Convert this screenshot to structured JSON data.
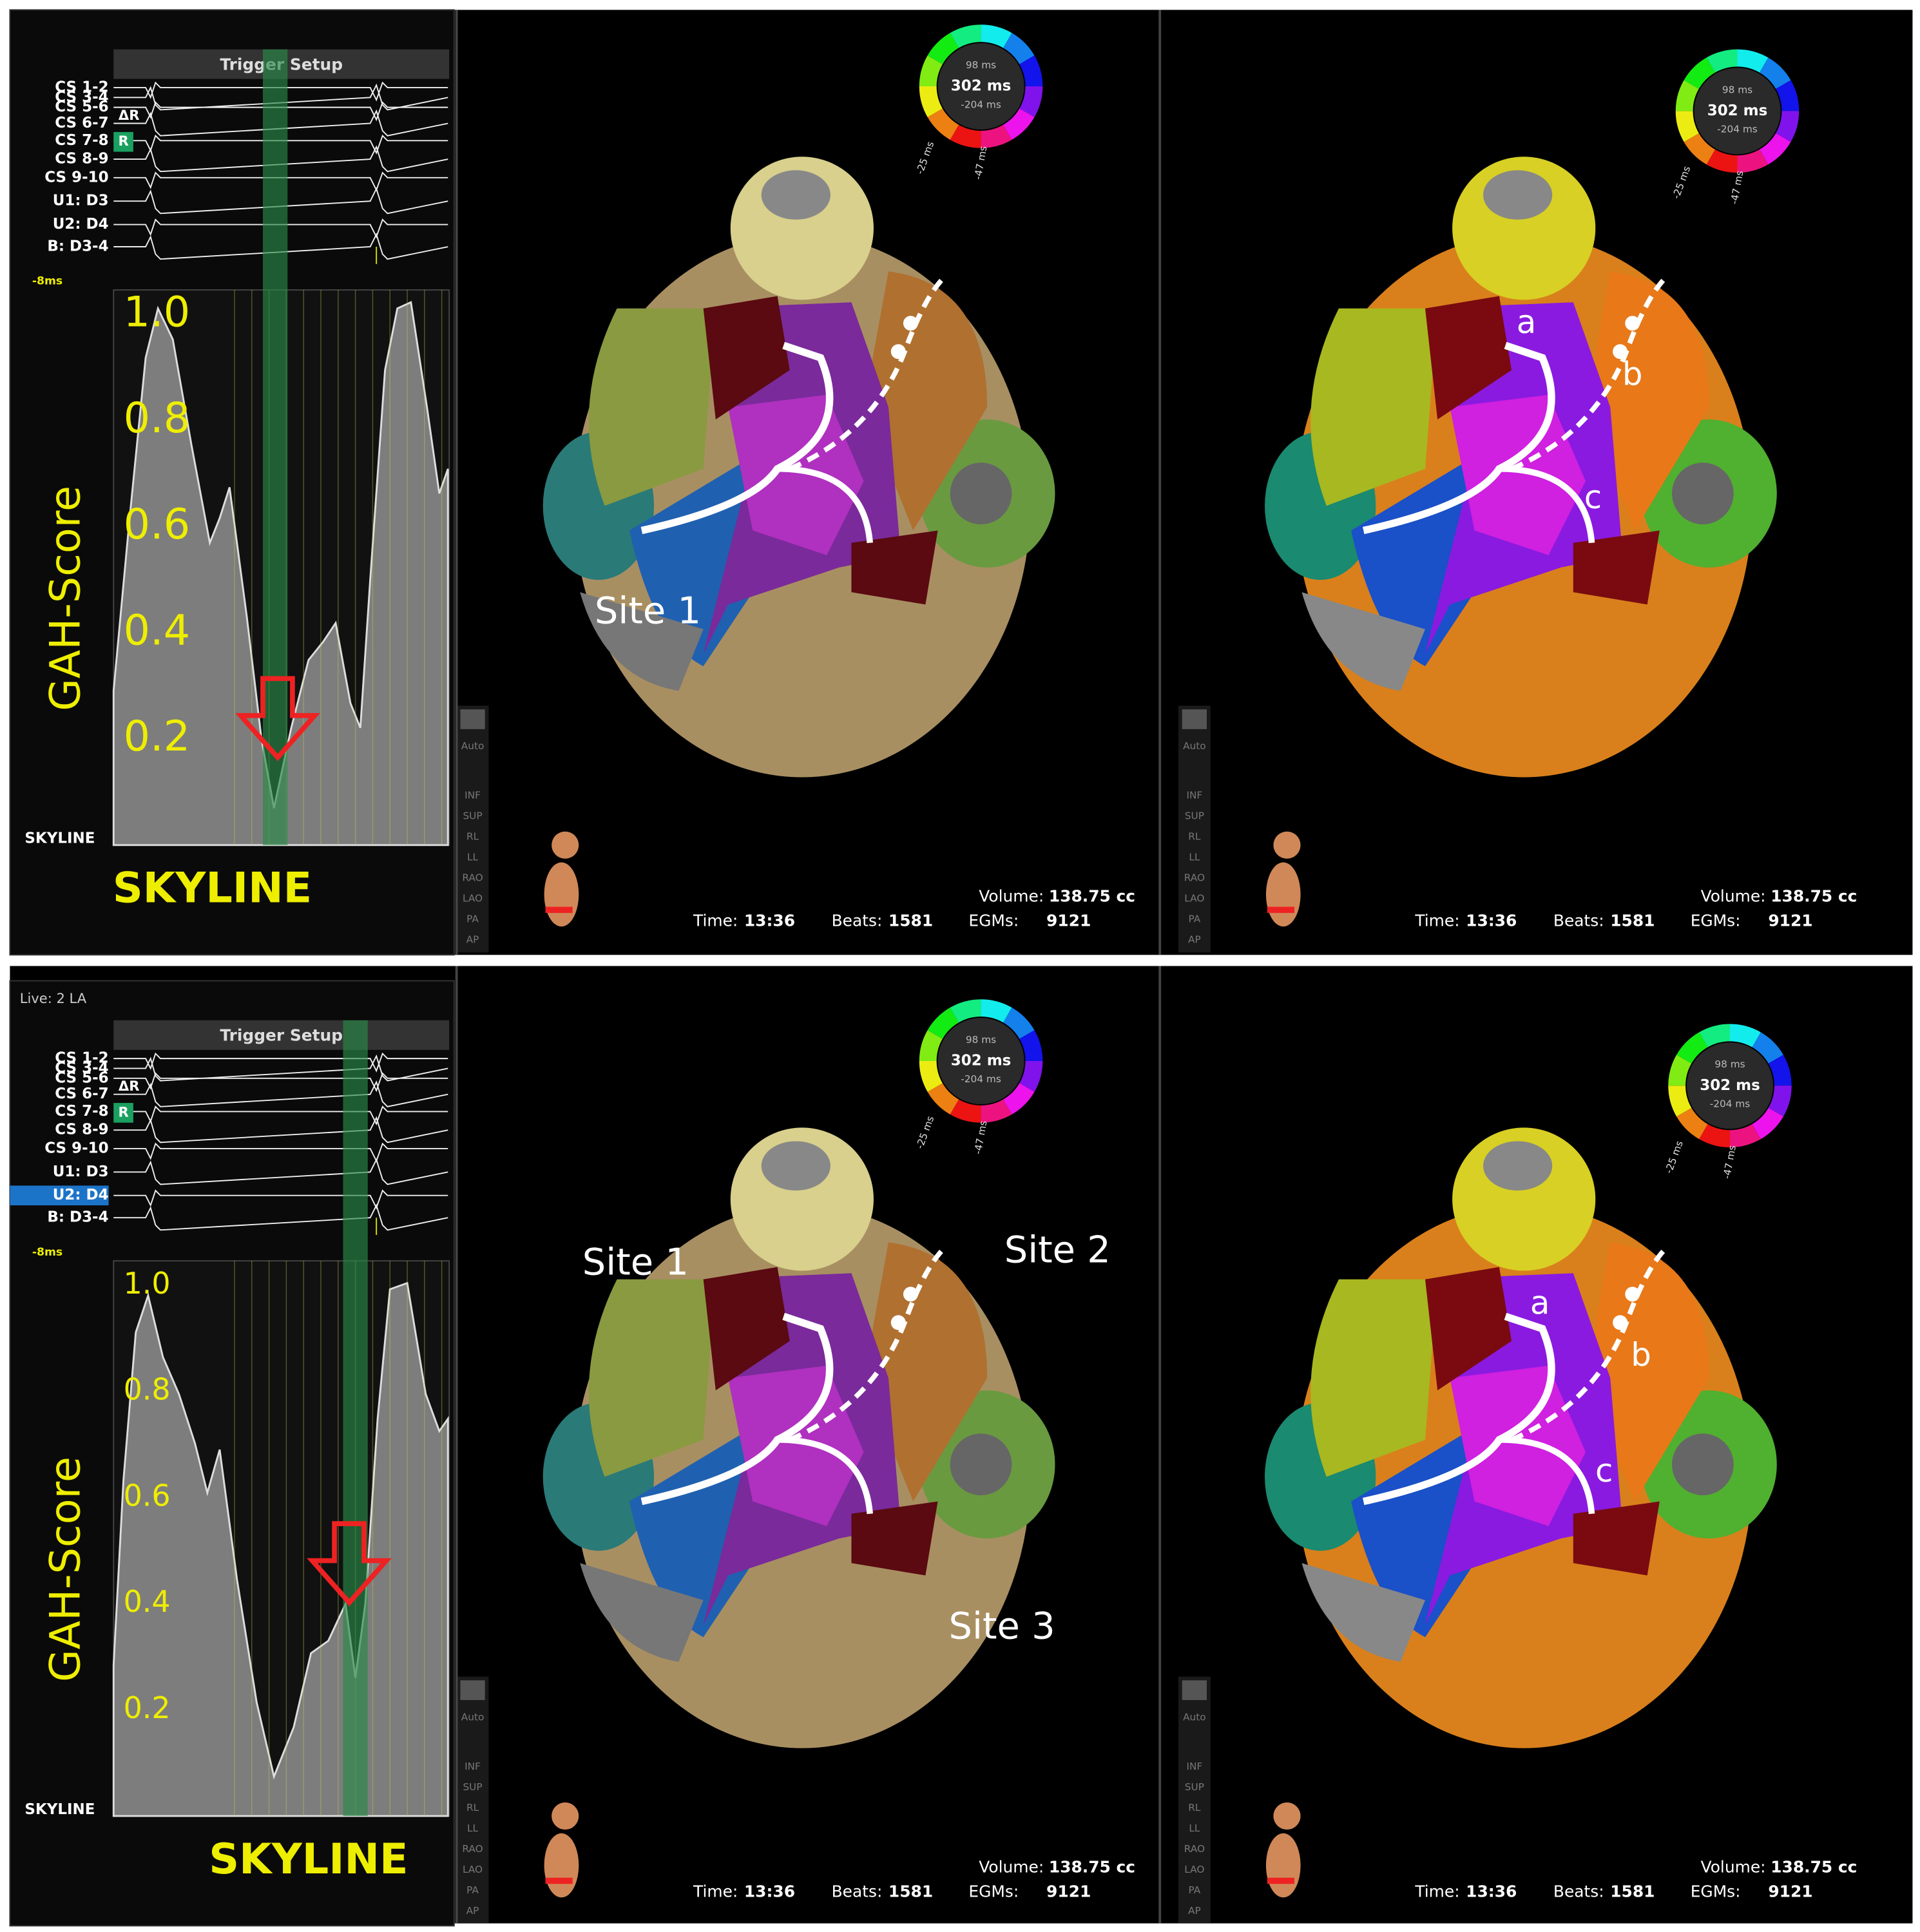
{
  "panels": [
    {
      "egm": {
        "header": "Trigger Setup",
        "channels": [
          "CS 1-2",
          "CS 3-4",
          "CS 5-6",
          "CS 6-7",
          "CS 7-8",
          "CS 8-9",
          "CS 9-10",
          "U1: D3",
          "U2: D4",
          "B: D3-4"
        ],
        "offset": "-8ms",
        "delta": "ΔR",
        "badge": "R",
        "axis_title": "GAH-Score",
        "ticks": [
          "1.0",
          "0.8",
          "0.6",
          "0.4",
          "0.2"
        ],
        "track": "SKYLINE",
        "caption": "SKYLINE"
      },
      "maps": [
        {
          "labels": [
            "Site 1"
          ]
        },
        {
          "labels": [
            "a",
            "b",
            "c"
          ]
        }
      ]
    },
    {
      "egm": {
        "live": "Live: 2 LA",
        "header": "Trigger Setup",
        "channels": [
          "CS 1-2",
          "CS 3-4",
          "CS 5-6",
          "CS 6-7",
          "CS 7-8",
          "CS 8-9",
          "CS 9-10",
          "U1: D3",
          "U2: D4",
          "B: D3-4"
        ],
        "offset": "-8ms",
        "delta": "ΔR",
        "badge": "R",
        "axis_title": "GAH-Score",
        "ticks": [
          "1.0",
          "0.8",
          "0.6",
          "0.4",
          "0.2"
        ],
        "track": "SKYLINE",
        "caption": "SKYLINE"
      },
      "maps": [
        {
          "labels": [
            "Site 1",
            "Site 2",
            "Site 3"
          ]
        },
        {
          "labels": [
            "a",
            "b",
            "c"
          ]
        }
      ]
    }
  ],
  "map_ui": {
    "wheel": {
      "max": "98 ms",
      "center": "302 ms",
      "min": "-204 ms",
      "left": "-25 ms",
      "right": "-47 ms"
    },
    "toolbar": [
      "Auto",
      "INF",
      "SUP",
      "RL",
      "LL",
      "RAO",
      "LAO",
      "PA",
      "AP"
    ],
    "stats": {
      "volume_label": "Volume:",
      "volume": "138.75 cc",
      "time_label": "Time:",
      "time": "13:36",
      "beats_label": "Beats:",
      "beats": "1581",
      "egms_label": "EGMs:",
      "egms": "9121"
    }
  }
}
